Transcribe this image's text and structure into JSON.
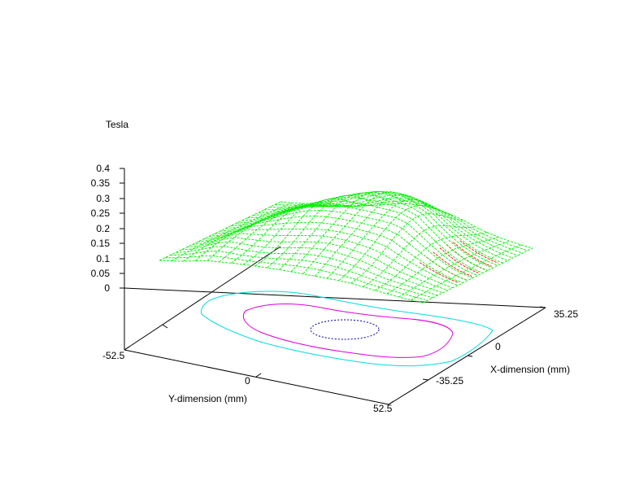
{
  "chart_data": {
    "type": "surface",
    "zlabel": "Tesla",
    "xlabel": "X-dimension (mm)",
    "ylabel": "Y-dimension (mm)",
    "z_ticks": [
      "0.4",
      "0.35",
      "0.3",
      "0.25",
      "0.2",
      "0.15",
      "0.1",
      "0.05",
      "0"
    ],
    "zlim": [
      0,
      0.4
    ],
    "y_ticks": [
      "-52.5",
      "0",
      "52.5"
    ],
    "ylim": [
      -52.5,
      52.5
    ],
    "x_ticks": [
      "35.25",
      "0",
      "-35.25"
    ],
    "xlim": [
      -35.25,
      35.25
    ],
    "grid": false,
    "legend": "none",
    "colors": {
      "surface": "#00ee00",
      "surface_underside": "#ff0000",
      "contour_outer": "#00dddd",
      "contour_middle": "#dd00dd",
      "contour_inner": "#0000aa",
      "axes": "#000000"
    }
  }
}
